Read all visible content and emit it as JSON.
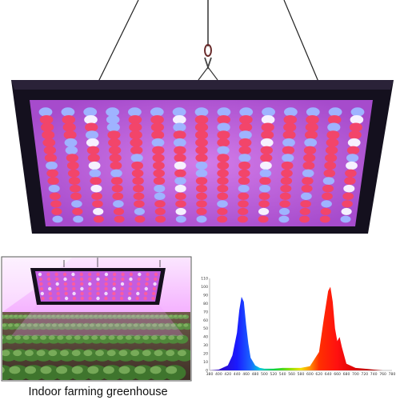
{
  "product": {
    "name": "LED grow light panel",
    "caption": "Indoor farming greenhouse"
  },
  "icons": {
    "main_panel": "led-grow-panel-icon",
    "hanger": "hanging-hook-icon",
    "greenhouse_photo": "greenhouse-rows-photo-icon",
    "spectrum": "spectrum-chart-icon"
  },
  "colors": {
    "panel_frame": "#14101e",
    "panel_face": "#b457d6",
    "led_red": "#f2456a",
    "led_blue": "#9fb3ff",
    "led_white": "#f6f1ff",
    "greenhouse_glow": "#e685ff",
    "spectrum_blue": "#1a3cff",
    "spectrum_red": "#ff2020"
  },
  "chart_data": {
    "type": "area",
    "title": "",
    "xlabel": "",
    "ylabel": "",
    "xlim": [
      380,
      780
    ],
    "ylim": [
      0,
      110
    ],
    "x_ticks": [
      "380",
      "400",
      "420",
      "440",
      "460",
      "480",
      "500",
      "520",
      "540",
      "560",
      "580",
      "600",
      "620",
      "640",
      "660",
      "680",
      "700",
      "720",
      "740",
      "760",
      "780"
    ],
    "y_ticks": [
      "0",
      "10",
      "20",
      "30",
      "40",
      "50",
      "60",
      "70",
      "80",
      "90",
      "100",
      "110"
    ],
    "series": [
      {
        "x": [
          380,
          400,
          420,
          430,
          440,
          445,
          450,
          455,
          460,
          465,
          470,
          480,
          490,
          500,
          520,
          540,
          560,
          580,
          600,
          620,
          630,
          640,
          645,
          650,
          655,
          660,
          665,
          670,
          680,
          700,
          720,
          740,
          760,
          780
        ],
        "values": [
          0,
          1,
          6,
          18,
          45,
          72,
          88,
          82,
          55,
          32,
          15,
          6,
          3,
          2,
          2,
          3,
          3,
          3,
          5,
          22,
          60,
          95,
          100,
          82,
          50,
          35,
          40,
          28,
          8,
          3,
          2,
          1,
          0,
          0
        ]
      }
    ],
    "grid": false,
    "legend": "none"
  }
}
